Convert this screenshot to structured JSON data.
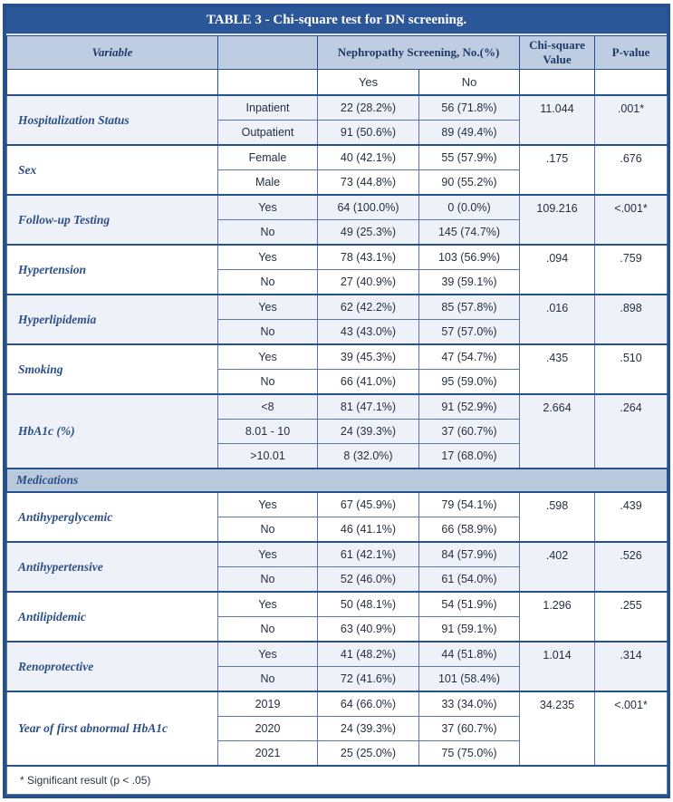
{
  "title": "TABLE 3 - Chi-square test for DN screening.",
  "colors": {
    "title_bar": "#2b5697",
    "header_bg": "#bfcde2",
    "section_band_bg": "#b9c9de",
    "group_tint_bg": "#eef2f8",
    "border": "#26508f",
    "heading_text": "#1f3a68",
    "variable_text": "#2d4f87",
    "data_text": "#262e3f"
  },
  "header": {
    "variable": "Variable",
    "spacer": "",
    "screening": "Nephropathy Screening, No.(%)",
    "chi": "Chi-square Value",
    "p": "P-value",
    "yes": "Yes",
    "no": "No"
  },
  "table": {
    "groups": [
      {
        "variable": "Hospitalization Status",
        "categories": [
          "Inpatient",
          "Outpatient"
        ],
        "yes": [
          "22 (28.2%)",
          "91 (50.6%)"
        ],
        "no": [
          "56 (71.8%)",
          "89 (49.4%)"
        ],
        "chi": "11.044",
        "p": ".001*"
      },
      {
        "variable": "Sex",
        "categories": [
          "Female",
          "Male"
        ],
        "yes": [
          "40 (42.1%)",
          "73 (44.8%)"
        ],
        "no": [
          "55 (57.9%)",
          "90 (55.2%)"
        ],
        "chi": ".175",
        "p": ".676"
      },
      {
        "variable": "Follow-up Testing",
        "categories": [
          "Yes",
          "No"
        ],
        "yes": [
          "64 (100.0%)",
          "49 (25.3%)"
        ],
        "no": [
          "0 (0.0%)",
          "145 (74.7%)"
        ],
        "chi": "109.216",
        "p": "<.001*"
      },
      {
        "variable": "Hypertension",
        "categories": [
          "Yes",
          "No"
        ],
        "yes": [
          "78 (43.1%)",
          "27 (40.9%)"
        ],
        "no": [
          "103 (56.9%)",
          "39 (59.1%)"
        ],
        "chi": ".094",
        "p": ".759"
      },
      {
        "variable": "Hyperlipidemia",
        "categories": [
          "Yes",
          "No"
        ],
        "yes": [
          "62 (42.2%)",
          "43 (43.0%)"
        ],
        "no": [
          "85 (57.8%)",
          "57 (57.0%)"
        ],
        "chi": ".016",
        "p": ".898"
      },
      {
        "variable": "Smoking",
        "categories": [
          "Yes",
          "No"
        ],
        "yes": [
          "39 (45.3%)",
          "66 (41.0%)"
        ],
        "no": [
          "47 (54.7%)",
          "95 (59.0%)"
        ],
        "chi": ".435",
        "p": ".510"
      },
      {
        "variable": "HbA1c (%)",
        "categories": [
          "<8",
          "8.01 - 10",
          ">10.01"
        ],
        "yes": [
          "81 (47.1%)",
          "24 (39.3%)",
          "8 (32.0%)"
        ],
        "no": [
          "91 (52.9%)",
          "37 (60.7%)",
          "17 (68.0%)"
        ],
        "chi": "2.664",
        "p": ".264"
      },
      {
        "section": "Medications"
      },
      {
        "variable": "Antihyperglycemic",
        "categories": [
          "Yes",
          "No"
        ],
        "yes": [
          "67 (45.9%)",
          "46 (41.1%)"
        ],
        "no": [
          "79 (54.1%)",
          "66 (58.9%)"
        ],
        "chi": ".598",
        "p": ".439"
      },
      {
        "variable": "Antihypertensive",
        "categories": [
          "Yes",
          "No"
        ],
        "yes": [
          "61 (42.1%)",
          "52 (46.0%)"
        ],
        "no": [
          "84 (57.9%)",
          "61 (54.0%)"
        ],
        "chi": ".402",
        "p": ".526"
      },
      {
        "variable": "Antilipidemic",
        "categories": [
          "Yes",
          "No"
        ],
        "yes": [
          "50 (48.1%)",
          "63 (40.9%)"
        ],
        "no": [
          "54 (51.9%)",
          "91 (59.1%)"
        ],
        "chi": "1.296",
        "p": ".255"
      },
      {
        "variable": "Renoprotective",
        "categories": [
          "Yes",
          "No"
        ],
        "yes": [
          "41 (48.2%)",
          "72 (41.6%)"
        ],
        "no": [
          "44 (51.8%)",
          "101 (58.4%)"
        ],
        "chi": "1.014",
        "p": ".314"
      },
      {
        "variable": "Year of first abnormal HbA1c",
        "categories": [
          "2019",
          "2020",
          "2021"
        ],
        "yes": [
          "64 (66.0%)",
          "24 (39.3%)",
          "25 (25.0%)"
        ],
        "no": [
          "33 (34.0%)",
          "37 (60.7%)",
          "75 (75.0%)"
        ],
        "chi": "34.235",
        "p": "<.001*"
      }
    ]
  },
  "footnote": "* Significant result (p < .05)"
}
